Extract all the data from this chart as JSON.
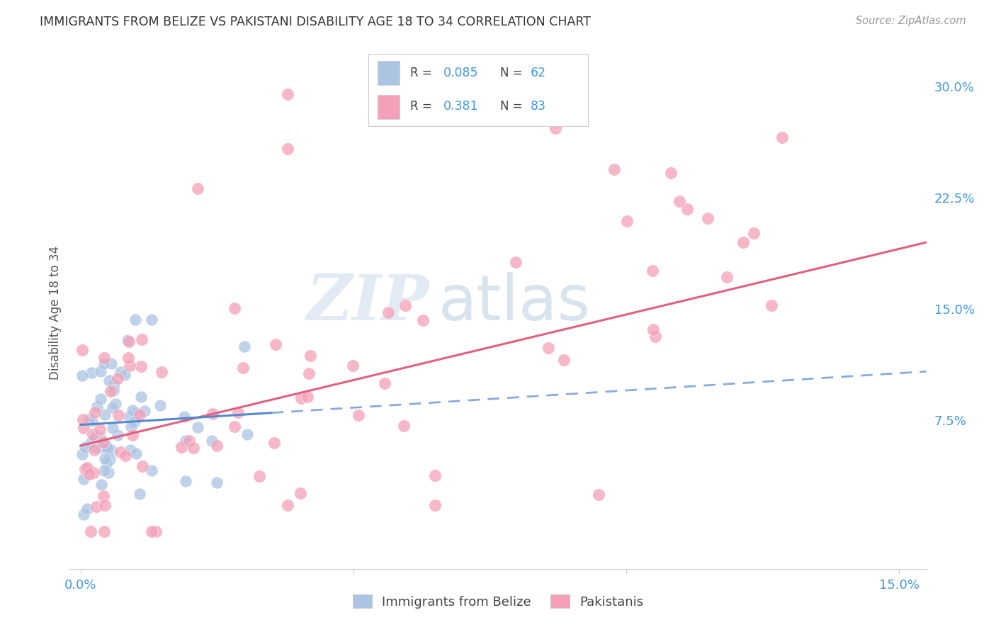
{
  "title": "IMMIGRANTS FROM BELIZE VS PAKISTANI DISABILITY AGE 18 TO 34 CORRELATION CHART",
  "source": "Source: ZipAtlas.com",
  "ylabel": "Disability Age 18 to 34",
  "xlim": [
    -0.002,
    0.155
  ],
  "ylim": [
    -0.025,
    0.32
  ],
  "xticks": [
    0.0,
    0.05,
    0.1,
    0.15
  ],
  "xticklabels": [
    "0.0%",
    "",
    "",
    "15.0%"
  ],
  "yticks": [
    0.075,
    0.15,
    0.225,
    0.3
  ],
  "yticklabels": [
    "7.5%",
    "15.0%",
    "22.5%",
    "30.0%"
  ],
  "belize_color": "#aac4e2",
  "pakistani_color": "#f4a0b8",
  "belize_line_solid_color": "#5588cc",
  "belize_line_dash_color": "#88aadd",
  "pakistani_line_color": "#e06080",
  "legend_label_1": "Immigrants from Belize",
  "legend_label_2": "Pakistanis",
  "watermark_zip": "ZIP",
  "watermark_atlas": "atlas",
  "background_color": "#ffffff",
  "grid_color": "#dddddd",
  "tick_label_color": "#4499dd",
  "title_color": "#333333",
  "source_color": "#999999",
  "ylabel_color": "#555555"
}
